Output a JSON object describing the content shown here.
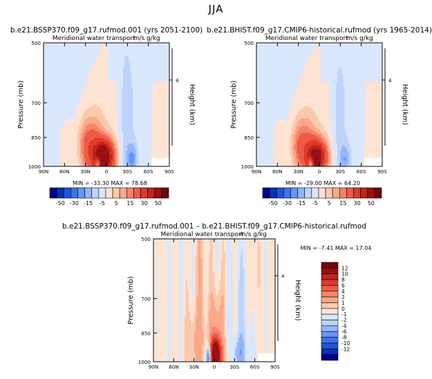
{
  "title": "JJA",
  "colors": {
    "neg": [
      "#000090",
      "#0a2fb3",
      "#1e56d6",
      "#3d73ee",
      "#6496f7",
      "#93b5f9",
      "#bcd3fa",
      "#d9e7fd"
    ],
    "pos": [
      "#fde3d2",
      "#fbc8ad",
      "#f9a88a",
      "#f5836a",
      "#ee5a45",
      "#dd3a2a",
      "#c1241b",
      "#991013",
      "#72060a"
    ]
  },
  "charts": [
    {
      "title": "b.e21.BSSP370.f09_g17.rufmod.001 (yrs 2051-2100)",
      "subtitle": "Meridional water transport",
      "units": "m/s g/kg",
      "ylabel": "Pressure (mb)",
      "ylabel_right": "Height (km)",
      "stats": "MIN = -33.30 MAX = 78.68",
      "colorbar": [
        "-50",
        "-30",
        "-15",
        "-5",
        "5",
        "15",
        "30",
        "50"
      ]
    },
    {
      "title": "b.e21.BHIST.f09_g17.CMIP6-historical.rufmod (yrs 1965-2014)",
      "subtitle": "Meridional water transport",
      "units": "m/s g/kg",
      "ylabel": "Pressure (mb)",
      "ylabel_right": "Height (km)",
      "stats": "MIN = -29.00 MAX = 64.20",
      "colorbar": [
        "-50",
        "-30",
        "-15",
        "-5",
        "5",
        "15",
        "30",
        "50"
      ]
    },
    {
      "title": "b.e21.BSSP370.f09_g17.rufmod.001 – b.e21.BHIST.f09_g17.CMIP6-historical.rufmod",
      "subtitle": "Meridional water transport",
      "units": "m/s g/kg",
      "ylabel": "Pressure (mb)",
      "ylabel_right": "Height (km)",
      "stats": "MIN = -7.41 MAX = 17.04",
      "colorbar": [
        "12",
        "10",
        "8",
        "6",
        "4",
        "2",
        "1",
        "0",
        "-1",
        "-2",
        "-4",
        "-6",
        "-8",
        "-10",
        "-12"
      ]
    }
  ],
  "chart_data": [
    {
      "type": "heatmap",
      "title": "b.e21.BSSP370.f09_g17.rufmod.001 (yrs 2051-2100)",
      "subtitle": "Meridional water transport",
      "units": "m/s g/kg",
      "xlabel": "",
      "ylabel": "Pressure (mb)",
      "ylabel_right": "Height (km)",
      "x_ticks": [
        "90N",
        "60N",
        "30N",
        "0",
        "30S",
        "60S",
        "90S"
      ],
      "y_ticks": [
        "500",
        "700",
        "850",
        "1000"
      ],
      "y_ticks_right": [
        "4"
      ],
      "xlim": [
        90,
        -90
      ],
      "ylim": [
        1000,
        500
      ],
      "y_scale": "log",
      "min": -33.3,
      "max": 78.68,
      "levels": [
        -50,
        -40,
        -30,
        -20,
        -15,
        -10,
        -5,
        0,
        5,
        10,
        15,
        20,
        30,
        40,
        50
      ],
      "features": [
        {
          "sign": "positive",
          "lat": 3,
          "p": 955,
          "peak": 78.68
        },
        {
          "sign": "negative",
          "lat": 12,
          "p": 985,
          "peak": -33.3
        },
        {
          "sign": "negative",
          "lat": -37,
          "p": 960,
          "peak": -20
        }
      ]
    },
    {
      "type": "heatmap",
      "title": "b.e21.BHIST.f09_g17.CMIP6-historical.rufmod (yrs 1965-2014)",
      "subtitle": "Meridional water transport",
      "units": "m/s g/kg",
      "xlabel": "",
      "ylabel": "Pressure (mb)",
      "ylabel_right": "Height (km)",
      "x_ticks": [
        "90N",
        "60N",
        "30N",
        "0",
        "30S",
        "60S",
        "90S"
      ],
      "y_ticks": [
        "500",
        "700",
        "850",
        "1000"
      ],
      "y_ticks_right": [
        "4"
      ],
      "xlim": [
        90,
        -90
      ],
      "ylim": [
        1000,
        500
      ],
      "y_scale": "log",
      "min": -29.0,
      "max": 64.2,
      "levels": [
        -50,
        -40,
        -30,
        -20,
        -15,
        -10,
        -5,
        0,
        5,
        10,
        15,
        20,
        30,
        40,
        50
      ],
      "features": [
        {
          "sign": "positive",
          "lat": 3,
          "p": 955,
          "peak": 64.2
        },
        {
          "sign": "negative",
          "lat": 12,
          "p": 985,
          "peak": -29.0
        },
        {
          "sign": "negative",
          "lat": -37,
          "p": 960,
          "peak": -18
        }
      ]
    },
    {
      "type": "heatmap",
      "title": "b.e21.BSSP370.f09_g17.rufmod.001 – b.e21.BHIST.f09_g17.CMIP6-historical.rufmod",
      "subtitle": "Meridional water transport",
      "units": "m/s g/kg",
      "xlabel": "",
      "ylabel": "Pressure (mb)",
      "ylabel_right": "Height (km)",
      "x_ticks": [
        "90N",
        "60N",
        "30N",
        "0",
        "30S",
        "60S",
        "90S"
      ],
      "y_ticks": [
        "500",
        "700",
        "850",
        "1000"
      ],
      "y_ticks_right": [
        "4"
      ],
      "xlim": [
        90,
        -90
      ],
      "ylim": [
        1000,
        500
      ],
      "y_scale": "log",
      "min": -7.41,
      "max": 17.04,
      "levels": [
        -12,
        -10,
        -8,
        -6,
        -4,
        -2,
        -1,
        0,
        1,
        2,
        4,
        6,
        8,
        10,
        12
      ],
      "features": [
        {
          "sign": "positive",
          "lat": -2,
          "p": 965,
          "peak": 17.04
        },
        {
          "sign": "negative",
          "lat": 8,
          "p": 975,
          "peak": -7.41
        },
        {
          "sign": "negative",
          "lat": -37,
          "p": 955,
          "peak": -3
        }
      ]
    }
  ]
}
